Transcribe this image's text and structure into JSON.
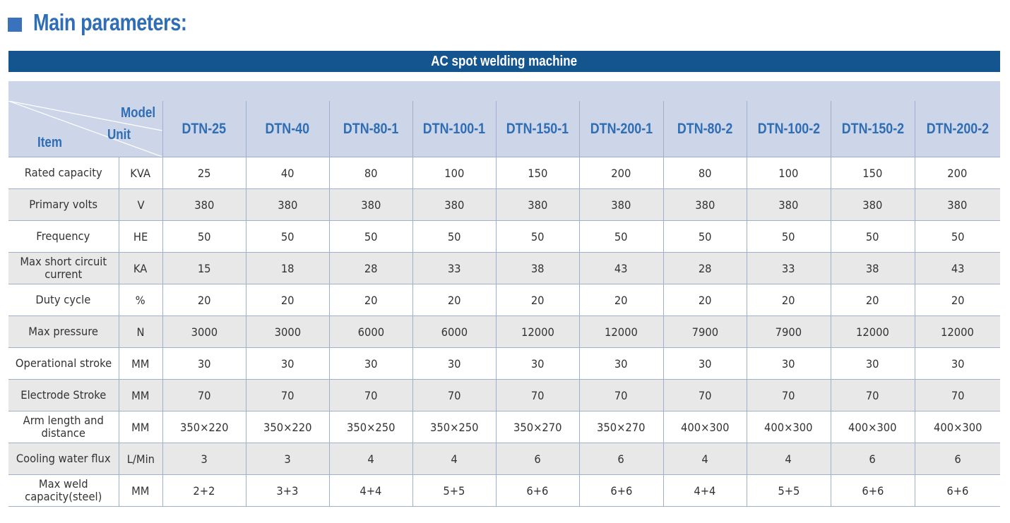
{
  "heading": {
    "text": "Main parameters:"
  },
  "table_title": "AC spot welding machine",
  "corner": {
    "model": "Model",
    "unit": "Unit",
    "item": "Item"
  },
  "models": [
    "DTN-25",
    "DTN-40",
    "DTN-80-1",
    "DTN-100-1",
    "DTN-150-1",
    "DTN-200-1",
    "DTN-80-2",
    "DTN-100-2",
    "DTN-150-2",
    "DTN-200-2"
  ],
  "rows": [
    {
      "item": "Rated capacity",
      "unit": "KVA",
      "values": [
        "25",
        "40",
        "80",
        "100",
        "150",
        "200",
        "80",
        "100",
        "150",
        "200"
      ]
    },
    {
      "item": "Primary volts",
      "unit": "V",
      "values": [
        "380",
        "380",
        "380",
        "380",
        "380",
        "380",
        "380",
        "380",
        "380",
        "380"
      ]
    },
    {
      "item": "Frequency",
      "unit": "HE",
      "values": [
        "50",
        "50",
        "50",
        "50",
        "50",
        "50",
        "50",
        "50",
        "50",
        "50"
      ]
    },
    {
      "item": "Max short circuit current",
      "unit": "KA",
      "values": [
        "15",
        "18",
        "28",
        "33",
        "38",
        "43",
        "28",
        "33",
        "38",
        "43"
      ]
    },
    {
      "item": "Duty cycle",
      "unit": "%",
      "values": [
        "20",
        "20",
        "20",
        "20",
        "20",
        "20",
        "20",
        "20",
        "20",
        "20"
      ]
    },
    {
      "item": "Max pressure",
      "unit": "N",
      "values": [
        "3000",
        "3000",
        "6000",
        "6000",
        "12000",
        "12000",
        "7900",
        "7900",
        "12000",
        "12000"
      ]
    },
    {
      "item": "Operational stroke",
      "unit": "MM",
      "values": [
        "30",
        "30",
        "30",
        "30",
        "30",
        "30",
        "30",
        "30",
        "30",
        "30"
      ]
    },
    {
      "item": "Electrode Stroke",
      "unit": "MM",
      "values": [
        "70",
        "70",
        "70",
        "70",
        "70",
        "70",
        "70",
        "70",
        "70",
        "70"
      ]
    },
    {
      "item": "Arm length and distance",
      "unit": "MM",
      "values": [
        "350×220",
        "350×220",
        "350×250",
        "350×250",
        "350×270",
        "350×270",
        "400×300",
        "400×300",
        "400×300",
        "400×300"
      ]
    },
    {
      "item": "Cooling water flux",
      "unit": "L/Min",
      "values": [
        "3",
        "3",
        "4",
        "4",
        "6",
        "6",
        "4",
        "4",
        "6",
        "6"
      ]
    },
    {
      "item": "Max weld capacity(steel)",
      "unit": "MM",
      "values": [
        "2+2",
        "3+3",
        "4+4",
        "5+5",
        "6+6",
        "6+6",
        "4+4",
        "5+5",
        "6+6",
        "6+6"
      ]
    }
  ],
  "colors": {
    "accent": "#2f6db5",
    "banner": "#15558f",
    "header_bg": "#cdd6e8",
    "row_shade": "#e8e8e8"
  }
}
